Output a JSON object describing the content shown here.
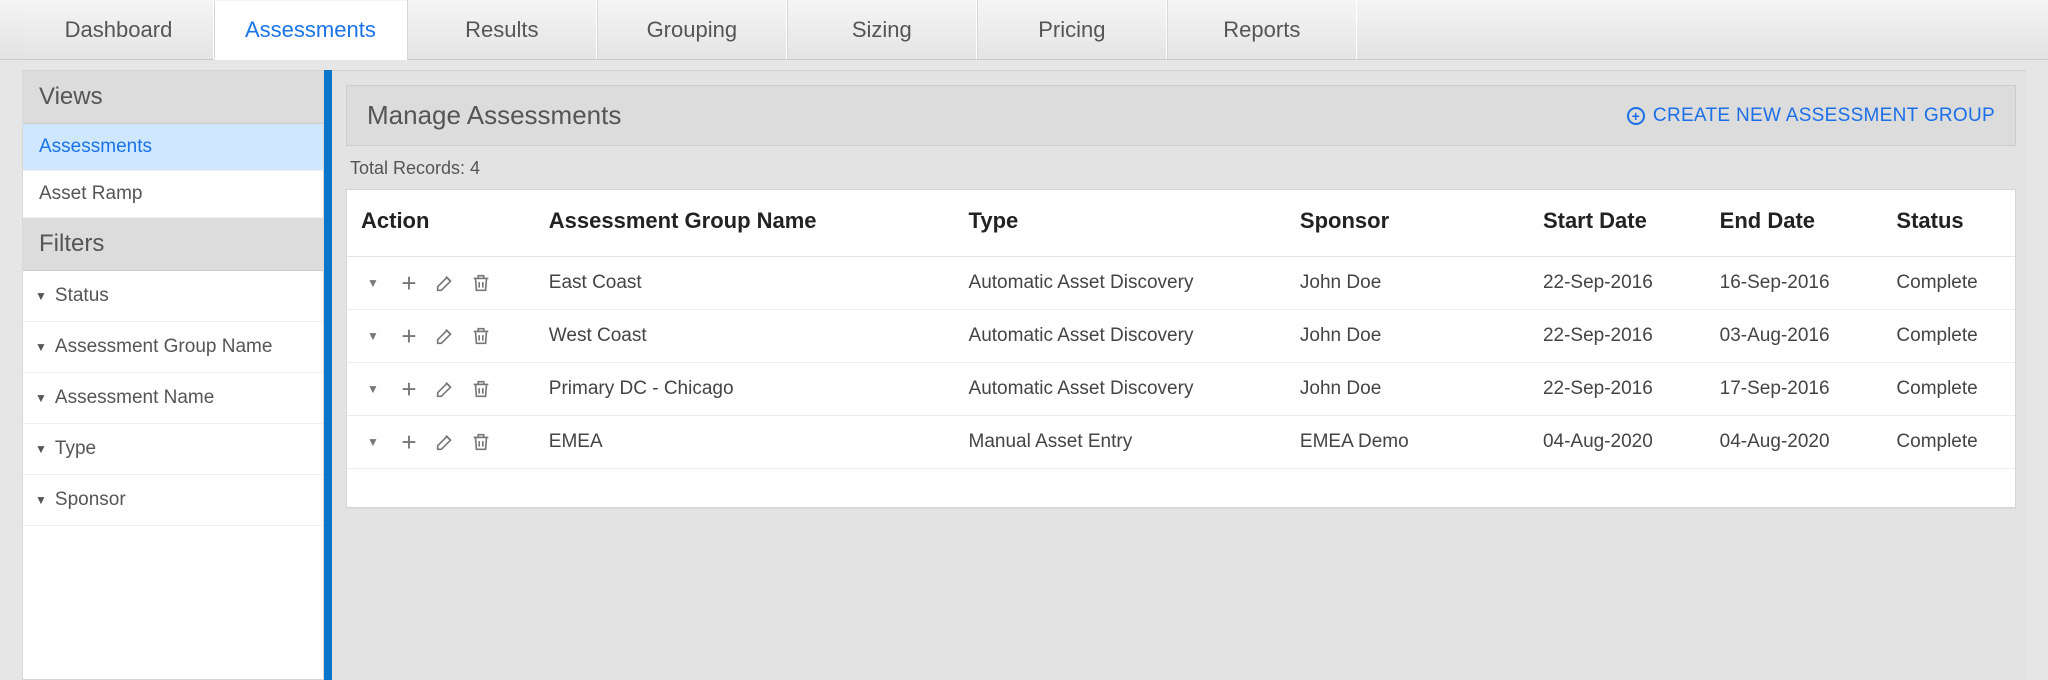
{
  "colors": {
    "accent": "#1a73e8",
    "link": "#1a6fe8",
    "vbar": "#0b75c9",
    "panel_bg": "#dcdcdc",
    "page_bg": "#e6e6e6",
    "selected_bg": "#cfe7ff",
    "border": "#d6d6d6"
  },
  "topnav": {
    "tabs": [
      {
        "label": "Dashboard",
        "active": false
      },
      {
        "label": "Assessments",
        "active": true
      },
      {
        "label": "Results",
        "active": false
      },
      {
        "label": "Grouping",
        "active": false
      },
      {
        "label": "Sizing",
        "active": false
      },
      {
        "label": "Pricing",
        "active": false
      },
      {
        "label": "Reports",
        "active": false
      }
    ]
  },
  "sidebar": {
    "views_header": "Views",
    "views": [
      {
        "label": "Assessments",
        "active": true
      },
      {
        "label": "Asset Ramp",
        "active": false
      }
    ],
    "filters_header": "Filters",
    "filters": [
      {
        "label": "Status"
      },
      {
        "label": "Assessment Group Name"
      },
      {
        "label": "Assessment Name"
      },
      {
        "label": "Type"
      },
      {
        "label": "Sponsor"
      }
    ]
  },
  "panel": {
    "title": "Manage Assessments",
    "create_label": "CREATE NEW ASSESSMENT GROUP",
    "total_records_label": "Total Records: 4"
  },
  "table": {
    "columns": [
      "Action",
      "Assessment Group Name",
      "Type",
      "Sponsor",
      "Start Date",
      "End Date",
      "Status"
    ],
    "rows": [
      {
        "name": "East Coast",
        "type": "Automatic Asset Discovery",
        "sponsor": "John Doe",
        "start": "22-Sep-2016",
        "end": "16-Sep-2016",
        "status": "Complete"
      },
      {
        "name": "West Coast",
        "type": "Automatic Asset Discovery",
        "sponsor": "John Doe",
        "start": "22-Sep-2016",
        "end": "03-Aug-2016",
        "status": "Complete"
      },
      {
        "name": "Primary DC - Chicago",
        "type": "Automatic Asset Discovery",
        "sponsor": "John Doe",
        "start": "22-Sep-2016",
        "end": "17-Sep-2016",
        "status": "Complete"
      },
      {
        "name": "EMEA",
        "type": "Manual Asset Entry",
        "sponsor": "EMEA Demo",
        "start": "04-Aug-2020",
        "end": "04-Aug-2020",
        "status": "Complete"
      }
    ]
  }
}
